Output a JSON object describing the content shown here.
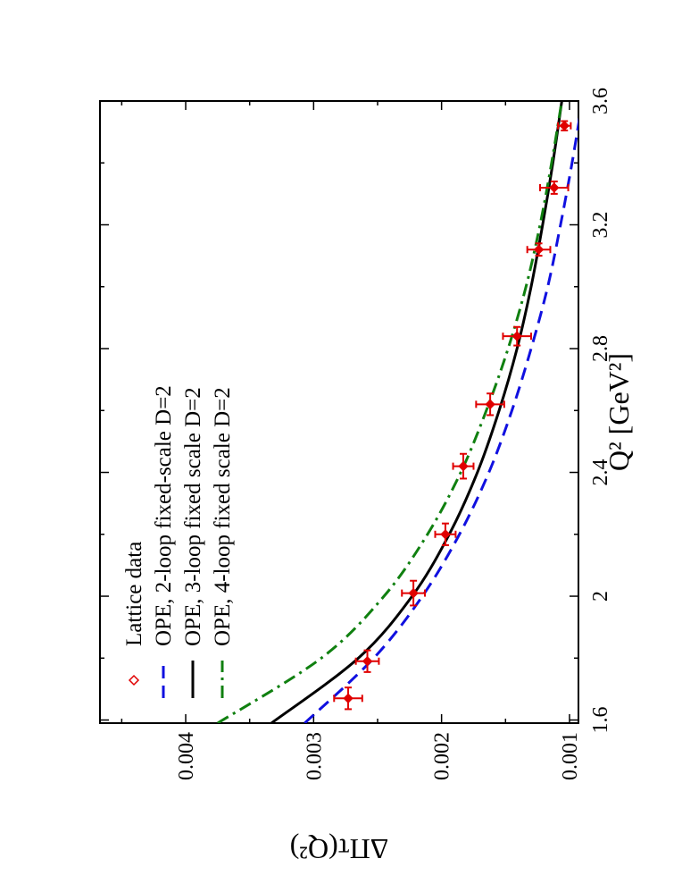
{
  "chart_data": {
    "type": "line",
    "orientation": "rotated-90-counterclockwise",
    "title": "",
    "xlabel": "Q² [GeV²]",
    "ylabel": "ΔΠτ(Q²)",
    "xlim": [
      1.59,
      3.6
    ],
    "ylim": [
      0.00093,
      0.00467
    ],
    "xticks": [
      1.6,
      2.0,
      2.4,
      2.8,
      3.2,
      3.6
    ],
    "xtick_labels": [
      "1.6",
      "2",
      "2.4",
      "2.8",
      "3.2",
      "3.6"
    ],
    "yticks": [
      0.001,
      0.002,
      0.003,
      0.004
    ],
    "ytick_labels": [
      "0.001",
      "0.002",
      "0.003",
      "0.004"
    ],
    "legend_position": "top-left",
    "legend": [
      {
        "label": "Lattice data",
        "color": "#e00000",
        "style": "marker"
      },
      {
        "label": "OPE, 2-loop fixed-scale D=2",
        "color": "#1010e0",
        "style": "dashed"
      },
      {
        "label": "OPE, 3-loop fixed scale D=2",
        "color": "#000000",
        "style": "solid"
      },
      {
        "label": "OPE, 4-loop fixed scale D=2",
        "color": "#108010",
        "style": "dashdot"
      }
    ],
    "series": [
      {
        "name": "Lattice data",
        "color": "#e00000",
        "style": "errorbar",
        "points": [
          {
            "x": 1.67,
            "y": 0.00273,
            "xerr": 0.035,
            "yerr": 0.00011
          },
          {
            "x": 1.79,
            "y": 0.00258,
            "xerr": 0.035,
            "yerr": 9e-05
          },
          {
            "x": 2.01,
            "y": 0.00222,
            "xerr": 0.04,
            "yerr": 9e-05
          },
          {
            "x": 2.2,
            "y": 0.00197,
            "xerr": 0.035,
            "yerr": 8e-05
          },
          {
            "x": 2.42,
            "y": 0.00183,
            "xerr": 0.04,
            "yerr": 8e-05
          },
          {
            "x": 2.62,
            "y": 0.00162,
            "xerr": 0.035,
            "yerr": 0.00011
          },
          {
            "x": 2.84,
            "y": 0.00141,
            "xerr": 0.03,
            "yerr": 0.00011
          },
          {
            "x": 3.12,
            "y": 0.00124,
            "xerr": 0.02,
            "yerr": 9e-05
          },
          {
            "x": 3.32,
            "y": 0.00112,
            "xerr": 0.02,
            "yerr": 0.00011
          },
          {
            "x": 3.52,
            "y": 0.00104,
            "xerr": 0.015,
            "yerr": 5e-05
          }
        ]
      },
      {
        "name": "OPE, 2-loop fixed-scale D=2",
        "color": "#1010e0",
        "style": "dashed",
        "x": [
          1.59,
          1.8,
          2.0,
          2.2,
          2.4,
          2.6,
          2.8,
          3.0,
          3.2,
          3.4,
          3.6
        ],
        "y": [
          0.00307,
          0.00253,
          0.00215,
          0.00186,
          0.00163,
          0.00145,
          0.0013,
          0.00117,
          0.00107,
          0.00098,
          0.0009
        ]
      },
      {
        "name": "OPE, 3-loop fixed scale D=2",
        "color": "#000000",
        "style": "solid",
        "x": [
          1.59,
          1.8,
          2.0,
          2.2,
          2.4,
          2.6,
          2.8,
          3.0,
          3.2,
          3.4,
          3.6
        ],
        "y": [
          0.00333,
          0.00265,
          0.00223,
          0.00194,
          0.00172,
          0.00155,
          0.00141,
          0.0013,
          0.00121,
          0.00113,
          0.00106
        ]
      },
      {
        "name": "OPE, 4-loop fixed scale D=2",
        "color": "#108010",
        "style": "dashdot",
        "x": [
          1.59,
          1.8,
          2.0,
          2.2,
          2.4,
          2.6,
          2.8,
          3.0,
          3.2,
          3.4,
          3.6
        ],
        "y": [
          0.00375,
          0.00294,
          0.00245,
          0.00211,
          0.00185,
          0.00165,
          0.00148,
          0.00134,
          0.00123,
          0.00114,
          0.00106
        ]
      }
    ]
  }
}
